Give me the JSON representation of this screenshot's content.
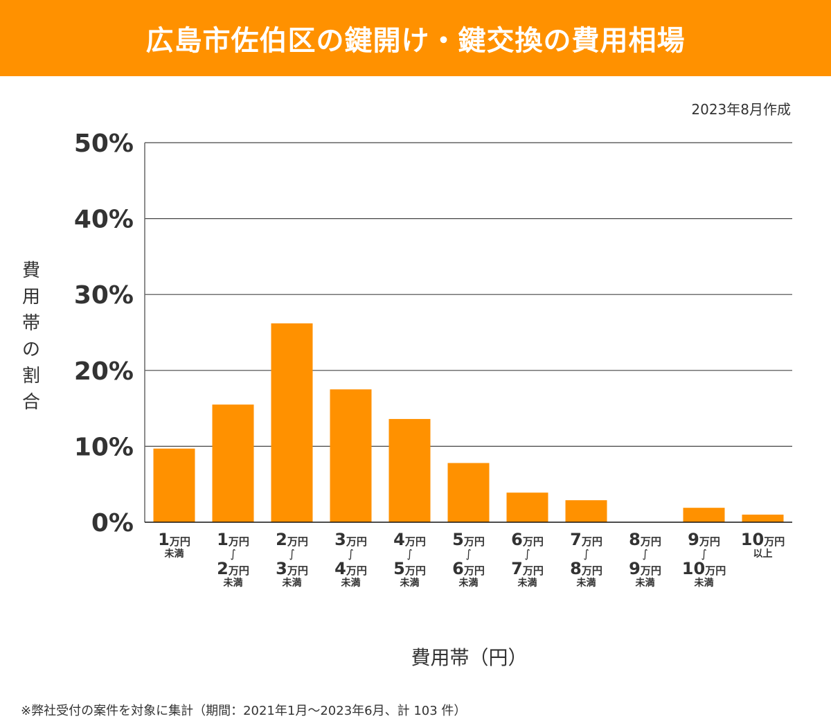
{
  "header": {
    "title": "広島市佐伯区の鍵開け・鍵交換の費用相場",
    "created": "2023年8月作成"
  },
  "colors": {
    "accent": "#ff9100",
    "bar": "#ff9100",
    "text": "#333333",
    "grid": "#333333"
  },
  "footnote": "※弊社受付の案件を対象に集計（期間：2021年1月～2023年6月、計 103 件）",
  "chart_data": {
    "type": "bar",
    "title": "広島市佐伯区の鍵開け・鍵交換の費用相場",
    "xlabel": "費用帯（円）",
    "ylabel": "費用帯の割合",
    "ylim": [
      0,
      50
    ],
    "yticks": [
      0,
      10,
      20,
      30,
      40,
      50
    ],
    "ytick_labels": [
      "0%",
      "10%",
      "20%",
      "30%",
      "40%",
      "50%"
    ],
    "grid": true,
    "categories": [
      "1万円未満",
      "1万円～2万円未満",
      "2万円～3万円未満",
      "3万円～4万円未満",
      "4万円～5万円未満",
      "5万円～6万円未満",
      "6万円～7万円未満",
      "7万円～8万円未満",
      "8万円～9万円未満",
      "9万円～10万円未満",
      "10万円以上"
    ],
    "tick_parts": [
      {
        "from": "1",
        "to": null,
        "suffix": "未満"
      },
      {
        "from": "1",
        "to": "2",
        "suffix": "未満"
      },
      {
        "from": "2",
        "to": "3",
        "suffix": "未満"
      },
      {
        "from": "3",
        "to": "4",
        "suffix": "未満"
      },
      {
        "from": "4",
        "to": "5",
        "suffix": "未満"
      },
      {
        "from": "5",
        "to": "6",
        "suffix": "未満"
      },
      {
        "from": "6",
        "to": "7",
        "suffix": "未満"
      },
      {
        "from": "7",
        "to": "8",
        "suffix": "未満"
      },
      {
        "from": "8",
        "to": "9",
        "suffix": "未満"
      },
      {
        "from": "9",
        "to": "10",
        "suffix": "未満"
      },
      {
        "from": "10",
        "to": null,
        "suffix": "以上"
      }
    ],
    "unit_label": "万円",
    "tilde": "~",
    "values": [
      9.7,
      15.5,
      26.2,
      17.5,
      13.6,
      7.8,
      3.9,
      2.9,
      0,
      1.9,
      1.0
    ],
    "unit": "%"
  }
}
